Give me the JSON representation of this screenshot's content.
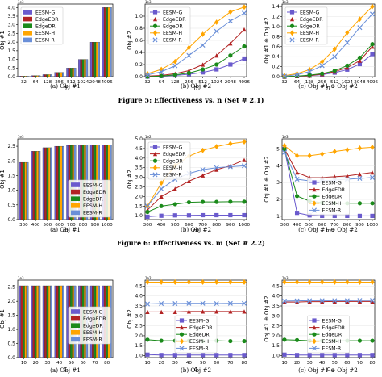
{
  "colors": {
    "EESM-G": "#6a5acd",
    "EdgeEDR": "#b22222",
    "EdgeDR": "#1a8a1a",
    "EESM-H": "#ffa500",
    "EESM-R": "#6a8fd8"
  },
  "legend_entries": [
    "EESM-G",
    "EdgeEDR",
    "EdgeDR",
    "EESM-H",
    "EESM-R"
  ],
  "figures": [
    {
      "caption": "Figure 5: Effectiveness vs. n (Set # 2.1)",
      "subcaptions": [
        "(a) Obj #1",
        "(b) Obj #2",
        "(c) Obj #1 ⊕ Obj #2"
      ]
    },
    {
      "caption": "Figure 6: Effectiveness vs. m (Set # 2.2)",
      "subcaptions": [
        "(a) Obj #1",
        "(b) Obj #2",
        "(c) Obj #1 ⊕ Obj #2"
      ]
    },
    {
      "caption": "",
      "subcaptions": [
        "(a) Obj #1",
        "(b) Obj #2",
        "(c) Obj #1 ⊕ Obj #2"
      ]
    }
  ],
  "chart_data": [
    {
      "type": "bar",
      "row": 0,
      "col": 0,
      "categories": [
        "32",
        "64",
        "128",
        "256",
        "512",
        "1024",
        "2048",
        "4096"
      ],
      "xlabel": "n",
      "ylabel": "Obj #1",
      "ylim": [
        0,
        4.2
      ],
      "yticks": [
        0,
        0.5,
        1,
        1.5,
        2,
        2.5,
        3,
        3.5,
        4
      ],
      "offset_text": "1e3",
      "series": [
        {
          "name": "EESM-G",
          "values": [
            0.03,
            0.06,
            0.12,
            0.25,
            0.5,
            1.0,
            2.0,
            4.0
          ]
        },
        {
          "name": "EdgeEDR",
          "values": [
            0.03,
            0.06,
            0.12,
            0.25,
            0.5,
            1.0,
            2.0,
            4.0
          ]
        },
        {
          "name": "EdgeDR",
          "values": [
            0.03,
            0.06,
            0.12,
            0.25,
            0.5,
            1.0,
            2.0,
            4.0
          ]
        },
        {
          "name": "EESM-H",
          "values": [
            0.03,
            0.06,
            0.12,
            0.25,
            0.5,
            1.0,
            2.0,
            4.0
          ]
        },
        {
          "name": "EESM-R",
          "values": [
            0.03,
            0.06,
            0.12,
            0.25,
            0.5,
            1.0,
            2.0,
            4.0
          ]
        }
      ],
      "legend": "top-left"
    },
    {
      "type": "line",
      "row": 0,
      "col": 1,
      "x": [
        "32",
        "64",
        "128",
        "256",
        "512",
        "1024",
        "2048",
        "4096"
      ],
      "xlabel": "n",
      "ylabel": "Obj #2",
      "ylim": [
        0,
        1.2
      ],
      "yticks": [
        0,
        0.2,
        0.4,
        0.6,
        0.8,
        1.0
      ],
      "offset_text": "1e3",
      "series": [
        {
          "name": "EESM-G",
          "values": [
            0.0,
            0.01,
            0.02,
            0.04,
            0.07,
            0.12,
            0.2,
            0.3
          ]
        },
        {
          "name": "EdgeEDR",
          "values": [
            0.01,
            0.02,
            0.05,
            0.1,
            0.2,
            0.35,
            0.55,
            0.78
          ]
        },
        {
          "name": "EdgeDR",
          "values": [
            0.0,
            0.01,
            0.03,
            0.06,
            0.12,
            0.2,
            0.35,
            0.5
          ]
        },
        {
          "name": "EESM-H",
          "values": [
            0.05,
            0.12,
            0.25,
            0.48,
            0.7,
            0.9,
            1.07,
            1.15
          ]
        },
        {
          "name": "EESM-R",
          "values": [
            0.03,
            0.08,
            0.18,
            0.35,
            0.52,
            0.75,
            0.92,
            1.05
          ]
        }
      ],
      "legend": "top-left"
    },
    {
      "type": "line",
      "row": 0,
      "col": 2,
      "x": [
        "32",
        "64",
        "128",
        "256",
        "512",
        "1024",
        "2048",
        "4096"
      ],
      "xlabel": "n",
      "ylabel": "Obj #1 ⊕ Obj #2",
      "ylim": [
        0,
        1.45
      ],
      "yticks": [
        0,
        0.2,
        0.4,
        0.6,
        0.8,
        1.0,
        1.2,
        1.4
      ],
      "offset_text": "1e3",
      "series": [
        {
          "name": "EESM-G",
          "values": [
            0.0,
            0.01,
            0.02,
            0.04,
            0.08,
            0.14,
            0.25,
            0.45
          ]
        },
        {
          "name": "EdgeEDR",
          "values": [
            0.0,
            0.01,
            0.02,
            0.05,
            0.1,
            0.18,
            0.32,
            0.6
          ]
        },
        {
          "name": "EdgeDR",
          "values": [
            0.0,
            0.01,
            0.03,
            0.06,
            0.12,
            0.22,
            0.38,
            0.65
          ]
        },
        {
          "name": "EESM-H",
          "values": [
            0.02,
            0.06,
            0.14,
            0.3,
            0.55,
            0.88,
            1.15,
            1.4
          ]
        },
        {
          "name": "EESM-R",
          "values": [
            0.01,
            0.04,
            0.1,
            0.22,
            0.4,
            0.68,
            0.98,
            1.25
          ]
        }
      ],
      "legend": "top-left"
    },
    {
      "type": "bar",
      "row": 1,
      "col": 0,
      "categories": [
        "300",
        "400",
        "500",
        "600",
        "700",
        "800",
        "900",
        "1000"
      ],
      "xlabel": "m",
      "ylabel": "Obj #1",
      "ylim": [
        0,
        2.75
      ],
      "yticks": [
        0,
        0.5,
        1,
        1.5,
        2,
        2.5
      ],
      "offset_text": "1e3",
      "series": [
        {
          "name": "EESM-G",
          "values": [
            1.95,
            2.33,
            2.45,
            2.5,
            2.53,
            2.54,
            2.55,
            2.55
          ]
        },
        {
          "name": "EdgeEDR",
          "values": [
            1.95,
            2.33,
            2.45,
            2.5,
            2.53,
            2.54,
            2.55,
            2.55
          ]
        },
        {
          "name": "EdgeDR",
          "values": [
            1.95,
            2.33,
            2.45,
            2.5,
            2.53,
            2.54,
            2.55,
            2.55
          ]
        },
        {
          "name": "EESM-H",
          "values": [
            1.95,
            2.33,
            2.45,
            2.5,
            2.53,
            2.54,
            2.55,
            2.55
          ]
        },
        {
          "name": "EESM-R",
          "values": [
            1.95,
            2.33,
            2.45,
            2.5,
            2.53,
            2.54,
            2.55,
            2.55
          ]
        }
      ],
      "legend": "bottom-right"
    },
    {
      "type": "line",
      "row": 1,
      "col": 1,
      "x": [
        "300",
        "400",
        "500",
        "600",
        "700",
        "800",
        "900",
        "1000"
      ],
      "xlabel": "m",
      "ylabel": "Obj #2",
      "ylim": [
        0.8,
        5.0
      ],
      "yticks": [
        1.0,
        1.5,
        2.0,
        2.5,
        3.0,
        3.5,
        4.0,
        4.5,
        5.0
      ],
      "offset_text": "1e2",
      "series": [
        {
          "name": "EESM-G",
          "values": [
            0.95,
            1.0,
            1.02,
            1.02,
            1.03,
            1.03,
            1.03,
            1.03
          ]
        },
        {
          "name": "EdgeEDR",
          "values": [
            1.3,
            2.0,
            2.4,
            2.8,
            3.1,
            3.4,
            3.6,
            3.9
          ]
        },
        {
          "name": "EdgeDR",
          "values": [
            1.2,
            1.5,
            1.6,
            1.7,
            1.72,
            1.72,
            1.73,
            1.73
          ]
        },
        {
          "name": "EESM-H",
          "values": [
            1.5,
            2.7,
            3.6,
            4.1,
            4.4,
            4.6,
            4.75,
            4.85
          ]
        },
        {
          "name": "EESM-R",
          "values": [
            1.5,
            2.4,
            2.9,
            3.2,
            3.4,
            3.5,
            3.55,
            3.6
          ]
        }
      ],
      "legend": "top-left"
    },
    {
      "type": "line",
      "row": 1,
      "col": 2,
      "x": [
        "300",
        "400",
        "500",
        "600",
        "700",
        "800",
        "900",
        "1000"
      ],
      "xlabel": "m",
      "ylabel": "Obj #1 ⊕ Obj #2",
      "ylim": [
        0.8,
        5.6
      ],
      "yticks": [
        1,
        2,
        3,
        4,
        5
      ],
      "offset_text": "1e3",
      "series": [
        {
          "name": "EESM-G",
          "values": [
            5.0,
            1.2,
            1.05,
            1.02,
            1.02,
            1.02,
            1.02,
            1.02
          ]
        },
        {
          "name": "EdgeEDR",
          "values": [
            5.0,
            3.6,
            3.3,
            3.3,
            3.35,
            3.4,
            3.5,
            3.6
          ]
        },
        {
          "name": "EdgeDR",
          "values": [
            5.0,
            2.2,
            1.9,
            1.8,
            1.78,
            1.77,
            1.77,
            1.77
          ]
        },
        {
          "name": "EESM-H",
          "values": [
            5.2,
            4.6,
            4.6,
            4.7,
            4.85,
            4.95,
            5.05,
            5.1
          ]
        },
        {
          "name": "EESM-R",
          "values": [
            4.8,
            3.2,
            3.1,
            3.1,
            3.15,
            3.2,
            3.25,
            3.3
          ]
        }
      ],
      "legend": "bottom-center"
    },
    {
      "type": "bar",
      "row": 2,
      "col": 0,
      "categories": [
        "10",
        "20",
        "30",
        "40",
        "50",
        "60",
        "70",
        "80"
      ],
      "xlabel": "c",
      "ylabel": "Obj #1",
      "ylim": [
        0,
        2.75
      ],
      "yticks": [
        0,
        0.5,
        1,
        1.5,
        2,
        2.5
      ],
      "offset_text": "1e3",
      "series": [
        {
          "name": "EESM-G",
          "values": [
            2.55,
            2.55,
            2.55,
            2.55,
            2.55,
            2.55,
            2.55,
            2.55
          ]
        },
        {
          "name": "EdgeEDR",
          "values": [
            2.55,
            2.55,
            2.55,
            2.55,
            2.55,
            2.55,
            2.55,
            2.55
          ]
        },
        {
          "name": "EdgeDR",
          "values": [
            2.55,
            2.55,
            2.55,
            2.55,
            2.55,
            2.55,
            2.55,
            2.55
          ]
        },
        {
          "name": "EESM-H",
          "values": [
            2.55,
            2.55,
            2.55,
            2.55,
            2.55,
            2.55,
            2.55,
            2.55
          ]
        },
        {
          "name": "EESM-R",
          "values": [
            2.55,
            2.55,
            2.55,
            2.55,
            2.55,
            2.55,
            2.55,
            2.55
          ]
        }
      ],
      "legend": "center-right"
    },
    {
      "type": "line",
      "row": 2,
      "col": 1,
      "x": [
        "10",
        "20",
        "30",
        "40",
        "50",
        "60",
        "70",
        "80"
      ],
      "xlabel": "c",
      "ylabel": "Obj #2",
      "ylim": [
        0.9,
        4.8
      ],
      "yticks": [
        1.0,
        1.5,
        2.0,
        2.5,
        3.0,
        3.5,
        4.0,
        4.5
      ],
      "offset_text": "1e2",
      "series": [
        {
          "name": "EESM-G",
          "values": [
            1.05,
            1.03,
            1.03,
            1.03,
            1.03,
            1.03,
            1.03,
            1.03
          ]
        },
        {
          "name": "EdgeEDR",
          "values": [
            3.2,
            3.2,
            3.2,
            3.22,
            3.22,
            3.22,
            3.22,
            3.22
          ]
        },
        {
          "name": "EdgeDR",
          "values": [
            1.8,
            1.75,
            1.75,
            1.75,
            1.73,
            1.75,
            1.73,
            1.73
          ]
        },
        {
          "name": "EESM-H",
          "values": [
            4.7,
            4.7,
            4.7,
            4.7,
            4.7,
            4.7,
            4.7,
            4.7
          ]
        },
        {
          "name": "EESM-R",
          "values": [
            3.6,
            3.62,
            3.62,
            3.63,
            3.63,
            3.62,
            3.63,
            3.63
          ]
        }
      ],
      "legend": "bottom-center"
    },
    {
      "type": "line",
      "row": 2,
      "col": 2,
      "x": [
        "10",
        "20",
        "30",
        "40",
        "50",
        "60",
        "70",
        "80"
      ],
      "xlabel": "c",
      "ylabel": "Obj #1 ⊕ Obj #2",
      "ylim": [
        0.9,
        4.8
      ],
      "yticks": [
        1.0,
        1.5,
        2.0,
        2.5,
        3.0,
        3.5,
        4.0,
        4.5
      ],
      "offset_text": "1e3",
      "series": [
        {
          "name": "EESM-G",
          "values": [
            1.05,
            1.03,
            1.03,
            1.03,
            1.03,
            1.03,
            1.03,
            1.03
          ]
        },
        {
          "name": "EdgeEDR",
          "values": [
            3.7,
            3.7,
            3.72,
            3.72,
            3.73,
            3.73,
            3.73,
            3.73
          ]
        },
        {
          "name": "EdgeDR",
          "values": [
            1.8,
            1.78,
            1.75,
            1.75,
            1.75,
            1.75,
            1.75,
            1.75
          ]
        },
        {
          "name": "EESM-H",
          "values": [
            4.7,
            4.7,
            4.7,
            4.7,
            4.7,
            4.7,
            4.7,
            4.7
          ]
        },
        {
          "name": "EESM-R",
          "values": [
            3.75,
            3.76,
            3.77,
            3.77,
            3.77,
            3.77,
            3.78,
            3.78
          ]
        }
      ],
      "legend": "bottom-center"
    }
  ]
}
